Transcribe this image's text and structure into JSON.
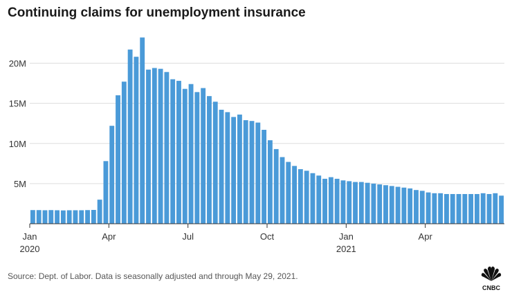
{
  "title": "Continuing claims for unemployment insurance",
  "source": "Source: Dept. of Labor. Data is seasonally adjusted and through May 29, 2021.",
  "logo_text": "CNBC",
  "chart_data": {
    "type": "bar",
    "title": "Continuing claims for unemployment insurance",
    "ylim": [
      0,
      24000000
    ],
    "yticks": [
      5000000,
      10000000,
      15000000,
      20000000
    ],
    "ytick_labels": [
      "5M",
      "10M",
      "15M",
      "20M"
    ],
    "grid": true,
    "bar_color": "#4a9ad8",
    "xticks": [
      {
        "index": 0,
        "label": "Jan",
        "sublabel": "2020"
      },
      {
        "index": 13,
        "label": "Apr",
        "sublabel": ""
      },
      {
        "index": 26,
        "label": "Jul",
        "sublabel": ""
      },
      {
        "index": 39,
        "label": "Oct",
        "sublabel": ""
      },
      {
        "index": 52,
        "label": "Jan",
        "sublabel": "2021"
      },
      {
        "index": 65,
        "label": "Apr",
        "sublabel": ""
      }
    ],
    "values": [
      1700000,
      1700000,
      1680000,
      1700000,
      1680000,
      1660000,
      1680000,
      1680000,
      1680000,
      1700000,
      1720000,
      3000000,
      7800000,
      12200000,
      16000000,
      17700000,
      21700000,
      20800000,
      23200000,
      19200000,
      19400000,
      19300000,
      18900000,
      18000000,
      17800000,
      16800000,
      17400000,
      16400000,
      16900000,
      15900000,
      15200000,
      14200000,
      13900000,
      13300000,
      13600000,
      12900000,
      12800000,
      12600000,
      11700000,
      10400000,
      9300000,
      8300000,
      7700000,
      7200000,
      6800000,
      6600000,
      6300000,
      6000000,
      5600000,
      5800000,
      5600000,
      5400000,
      5300000,
      5200000,
      5200000,
      5100000,
      5000000,
      4900000,
      4800000,
      4700000,
      4600000,
      4500000,
      4400000,
      4200000,
      4100000,
      3900000,
      3800000,
      3800000,
      3700000,
      3700000,
      3700000,
      3700000,
      3700000,
      3700000,
      3800000,
      3700000,
      3800000,
      3500000
    ]
  }
}
